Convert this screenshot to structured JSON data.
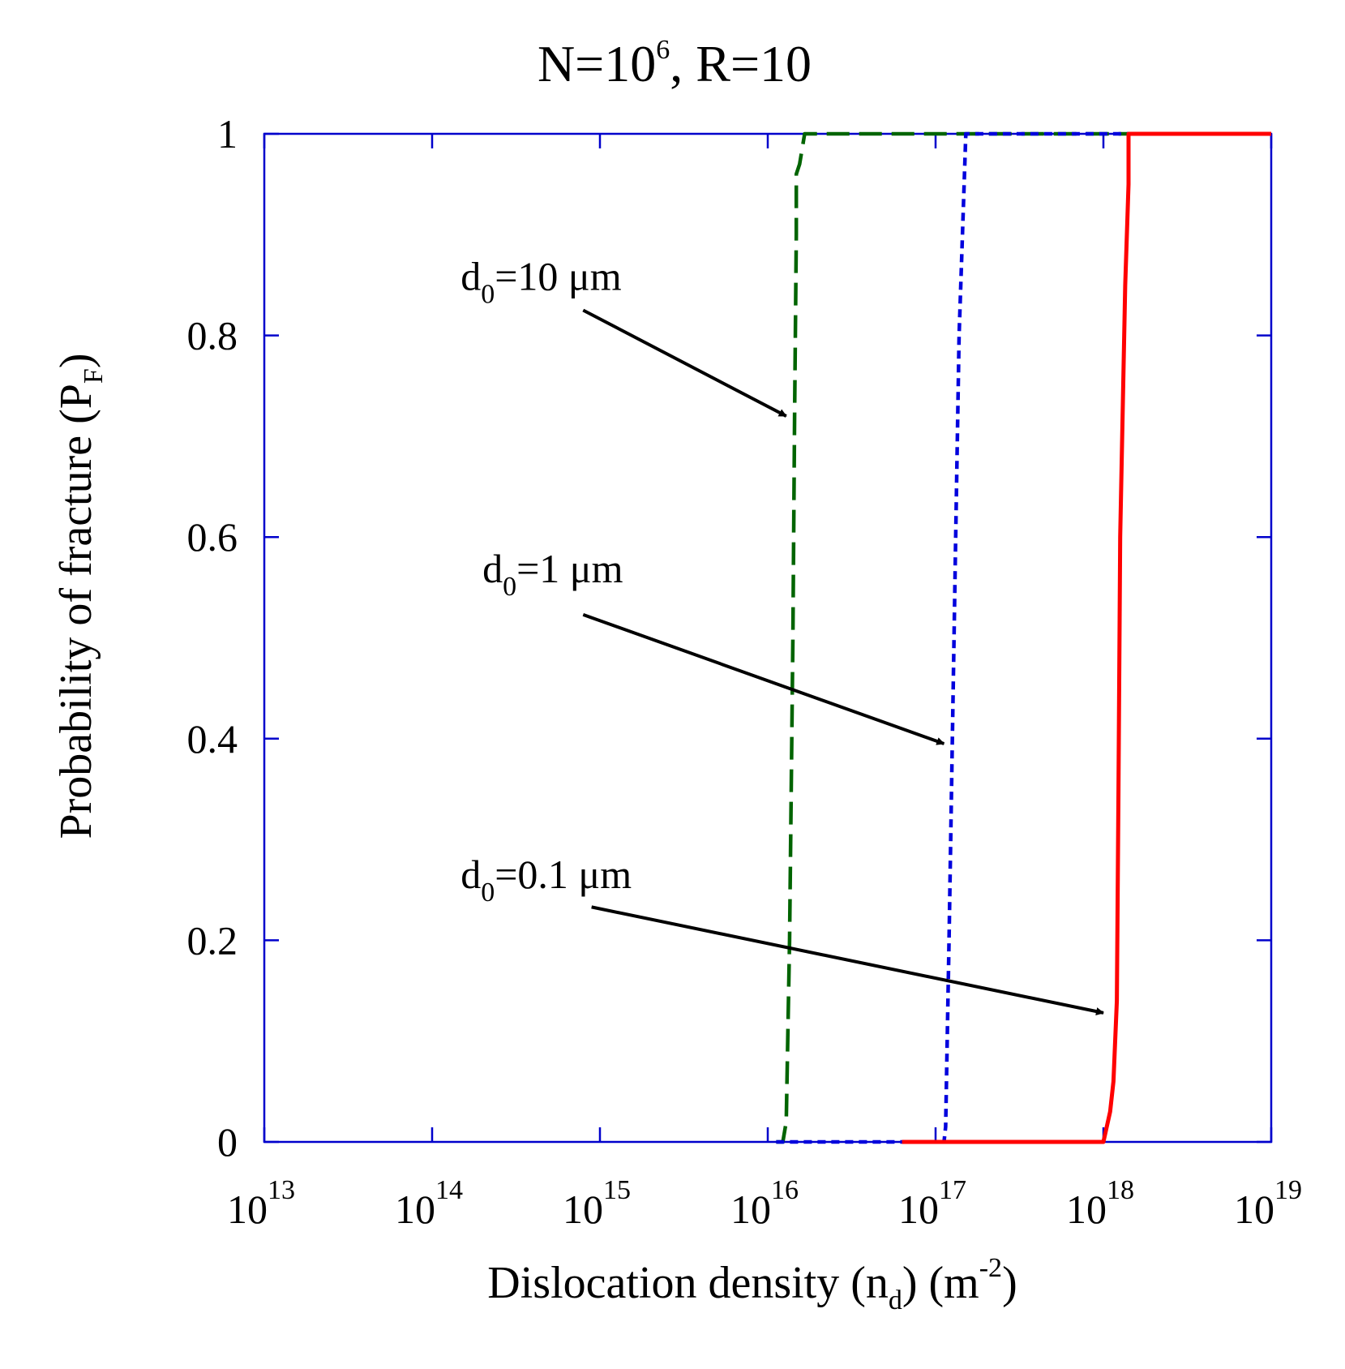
{
  "chart_data": {
    "type": "line",
    "title": {
      "main": "N=10",
      "exp": "6",
      "rest": ", R=10"
    },
    "xlabel": {
      "main": "Dislocation density (n",
      "sub": "d",
      "mid": ") (m",
      "sup": "-2",
      "end": ")"
    },
    "ylabel": {
      "main": "Probability of fracture (P",
      "sub": "F",
      "end": ")"
    },
    "x_scale": "log",
    "xlim": [
      10000000000000.0,
      1e+19
    ],
    "ylim": [
      0,
      1
    ],
    "x_ticks": [
      {
        "base": "10",
        "exp": "13",
        "value": 13
      },
      {
        "base": "10",
        "exp": "14",
        "value": 14
      },
      {
        "base": "10",
        "exp": "15",
        "value": 15
      },
      {
        "base": "10",
        "exp": "16",
        "value": 16
      },
      {
        "base": "10",
        "exp": "17",
        "value": 17
      },
      {
        "base": "10",
        "exp": "18",
        "value": 18
      },
      {
        "base": "10",
        "exp": "19",
        "value": 19
      }
    ],
    "y_ticks": [
      {
        "label": "0",
        "value": 0
      },
      {
        "label": "0.2",
        "value": 0.2
      },
      {
        "label": "0.4",
        "value": 0.4
      },
      {
        "label": "0.6",
        "value": 0.6
      },
      {
        "label": "0.8",
        "value": 0.8
      },
      {
        "label": "1",
        "value": 1
      }
    ],
    "colors": {
      "frame": "#0000cc"
    },
    "series": [
      {
        "name": "d0=10 μm",
        "color": "#006400",
        "dash": "dashed",
        "x": [
          16.05,
          16.09,
          16.11,
          16.13,
          16.15,
          16.16,
          16.17,
          16.17,
          16.19,
          16.22,
          16.25,
          19.0
        ],
        "y": [
          0,
          0,
          0.02,
          0.2,
          0.5,
          0.72,
          0.9,
          0.96,
          0.97,
          1.0,
          1.0,
          1.0
        ]
      },
      {
        "name": "d0=1 μm",
        "color": "#0000dd",
        "dash": "dotted",
        "x": [
          16.05,
          17.0,
          17.05,
          17.06,
          17.08,
          17.1,
          17.12,
          17.14,
          17.18,
          17.25,
          19.0
        ],
        "y": [
          0,
          0,
          0,
          0.015,
          0.2,
          0.4,
          0.6,
          0.8,
          1.0,
          1.0,
          1.0
        ]
      },
      {
        "name": "d0=0.1 μm",
        "color": "#ff0000",
        "dash": "solid",
        "x": [
          16.8,
          17.98,
          18.0,
          18.04,
          18.06,
          18.08,
          18.09,
          18.1,
          18.13,
          18.15,
          18.15,
          19.0
        ],
        "y": [
          0,
          0,
          0,
          0.03,
          0.06,
          0.14,
          0.35,
          0.6,
          0.85,
          0.95,
          1.0,
          1.0
        ]
      }
    ],
    "annotations": [
      {
        "base": "d",
        "sub": "0",
        "rest": "=10 μm",
        "series": 0,
        "text_x": 14.17,
        "text_y": 0.845,
        "tail_x": 14.9,
        "tail_y": 0.825,
        "head_x": 16.11,
        "head_y": 0.72
      },
      {
        "base": "d",
        "sub": "0",
        "rest": "=1 μm",
        "series": 1,
        "text_x": 14.3,
        "text_y": 0.555,
        "tail_x": 14.9,
        "tail_y": 0.523,
        "head_x": 17.05,
        "head_y": 0.395
      },
      {
        "base": "d",
        "sub": "0",
        "rest": "=0.1 μm",
        "series": 2,
        "text_x": 14.17,
        "text_y": 0.252,
        "tail_x": 14.95,
        "tail_y": 0.233,
        "head_x": 18.0,
        "head_y": 0.128
      }
    ]
  }
}
